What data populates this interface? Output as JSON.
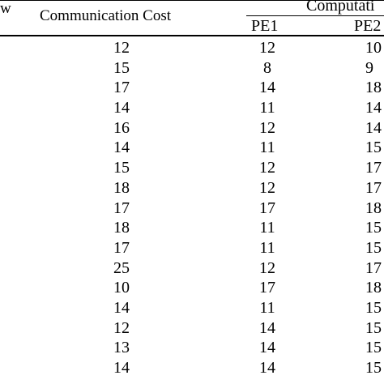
{
  "table": {
    "headers": {
      "row_col": "w",
      "communication_cost": "Communication Cost",
      "computation_cost": "Computati",
      "pe1": "PE1",
      "pe2": "PE2"
    },
    "rows": [
      {
        "comm": "12",
        "pe1": "12",
        "pe2": "10"
      },
      {
        "comm": "15",
        "pe1": "8",
        "pe2": "9"
      },
      {
        "comm": "17",
        "pe1": "14",
        "pe2": "18"
      },
      {
        "comm": "14",
        "pe1": "11",
        "pe2": "14"
      },
      {
        "comm": "16",
        "pe1": "12",
        "pe2": "14"
      },
      {
        "comm": "14",
        "pe1": "11",
        "pe2": "15"
      },
      {
        "comm": "15",
        "pe1": "12",
        "pe2": "17"
      },
      {
        "comm": "18",
        "pe1": "12",
        "pe2": "17"
      },
      {
        "comm": "17",
        "pe1": "17",
        "pe2": "18"
      },
      {
        "comm": "18",
        "pe1": "11",
        "pe2": "15"
      },
      {
        "comm": "17",
        "pe1": "11",
        "pe2": "15"
      },
      {
        "comm": "25",
        "pe1": "12",
        "pe2": "17"
      },
      {
        "comm": "10",
        "pe1": "17",
        "pe2": "18"
      },
      {
        "comm": "14",
        "pe1": "11",
        "pe2": "15"
      },
      {
        "comm": "12",
        "pe1": "14",
        "pe2": "15"
      },
      {
        "comm": "13",
        "pe1": "14",
        "pe2": "15"
      },
      {
        "comm": "14",
        "pe1": "14",
        "pe2": "15"
      }
    ]
  }
}
